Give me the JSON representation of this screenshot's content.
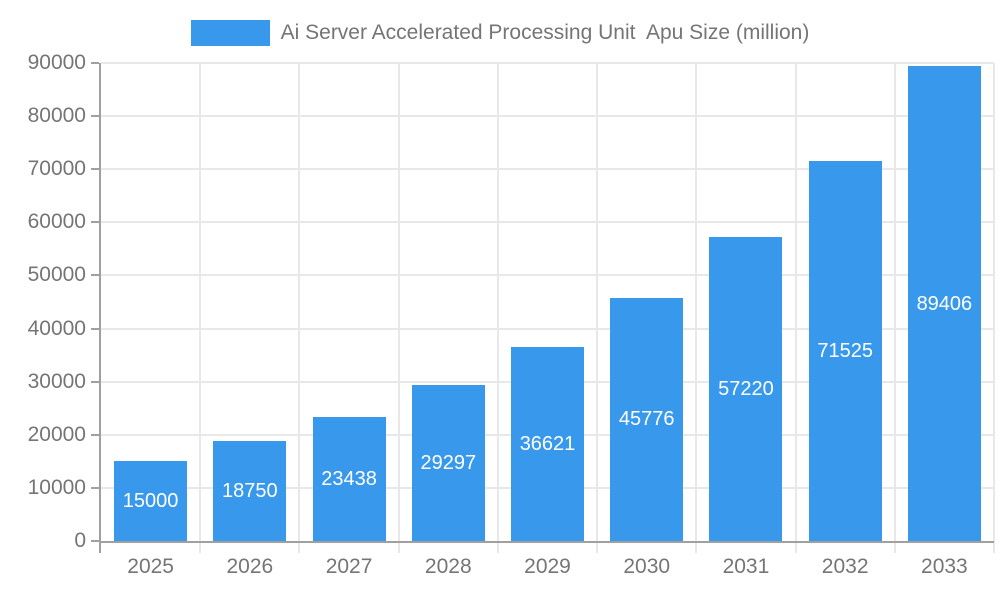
{
  "legend": {
    "label": "Ai Server Accelerated Processing Unit  Apu Size (million)"
  },
  "colors": {
    "bar": "#3899EC",
    "grid": "#E8E8E8",
    "axis": "#A0A0A0",
    "tick_text": "#757575",
    "bar_value_text": "#FFFFFF",
    "background": "#FFFFFF"
  },
  "chart_data": {
    "type": "bar",
    "title": "",
    "legend": "Ai Server Accelerated Processing Unit  Apu Size (million)",
    "legend_position": "top",
    "categories": [
      "2025",
      "2026",
      "2027",
      "2028",
      "2029",
      "2030",
      "2031",
      "2032",
      "2033"
    ],
    "values": [
      15000,
      18750,
      23438,
      29297,
      36621,
      45776,
      57220,
      71525,
      89406
    ],
    "value_labels_shown": true,
    "xlabel": "",
    "ylabel": "",
    "ylim": [
      0,
      90000
    ],
    "ytick_interval": 10000,
    "ytick_labels": [
      "0",
      "10000",
      "20000",
      "30000",
      "40000",
      "50000",
      "60000",
      "70000",
      "80000",
      "90000"
    ],
    "grid": true,
    "bar_color": "#3899EC"
  }
}
